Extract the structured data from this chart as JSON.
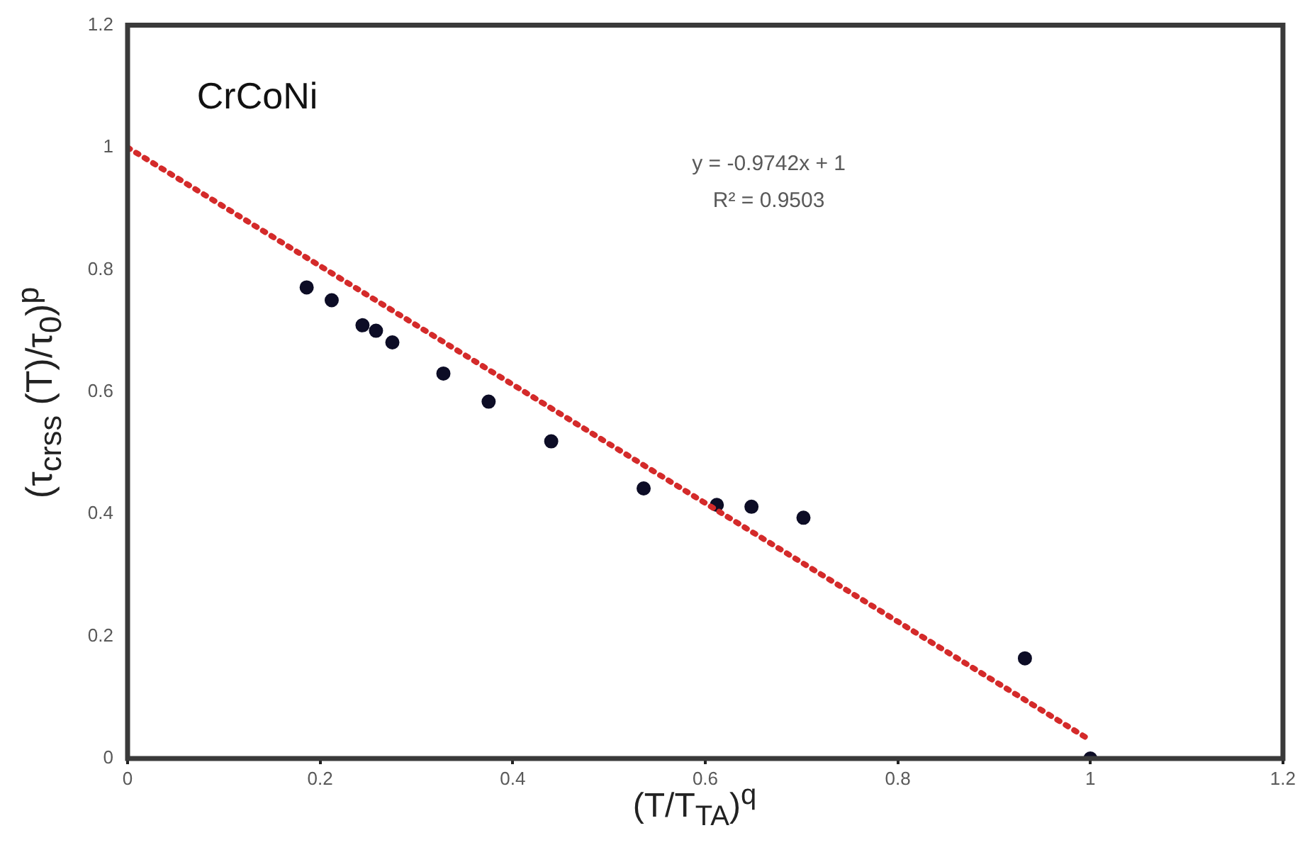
{
  "chart_data": {
    "type": "scatter",
    "xlabel": "(T/T$_{TA}$)$^{q}$",
    "ylabel": "(τ$_{crss}$ (T)/τ$_{0}$)$^{p}$",
    "annotations": [
      "CrCoNi",
      "y = -0.9742x + 1",
      "R² = 0.9503"
    ],
    "xlim": [
      0,
      1.2
    ],
    "xticks": [
      0,
      0.2,
      0.4,
      0.6,
      0.8,
      1,
      1.2
    ],
    "ylim": [
      0,
      1.2
    ],
    "yticks": [
      0,
      0.2,
      0.4,
      0.6,
      0.8,
      1,
      1.2
    ],
    "grid": false,
    "legend": false,
    "marker": "circle",
    "series": [
      {
        "color": "#0d0d26",
        "x": [
          0.186,
          0.212,
          0.244,
          0.258,
          0.275,
          0.328,
          0.375,
          0.44,
          0.536,
          0.612,
          0.648,
          0.702,
          0.932,
          1
        ],
        "values": [
          0.771,
          0.75,
          0.709,
          0.7,
          0.681,
          0.63,
          0.584,
          0.519,
          0.442,
          0.415,
          0.412,
          0.394,
          0.164,
          0
        ]
      },
      {
        "type": "line",
        "color": "#d42a2a",
        "line_style": "dotted",
        "marker": "none",
        "x": [
          0,
          1
        ],
        "values": [
          1,
          0.03
        ]
      }
    ]
  }
}
